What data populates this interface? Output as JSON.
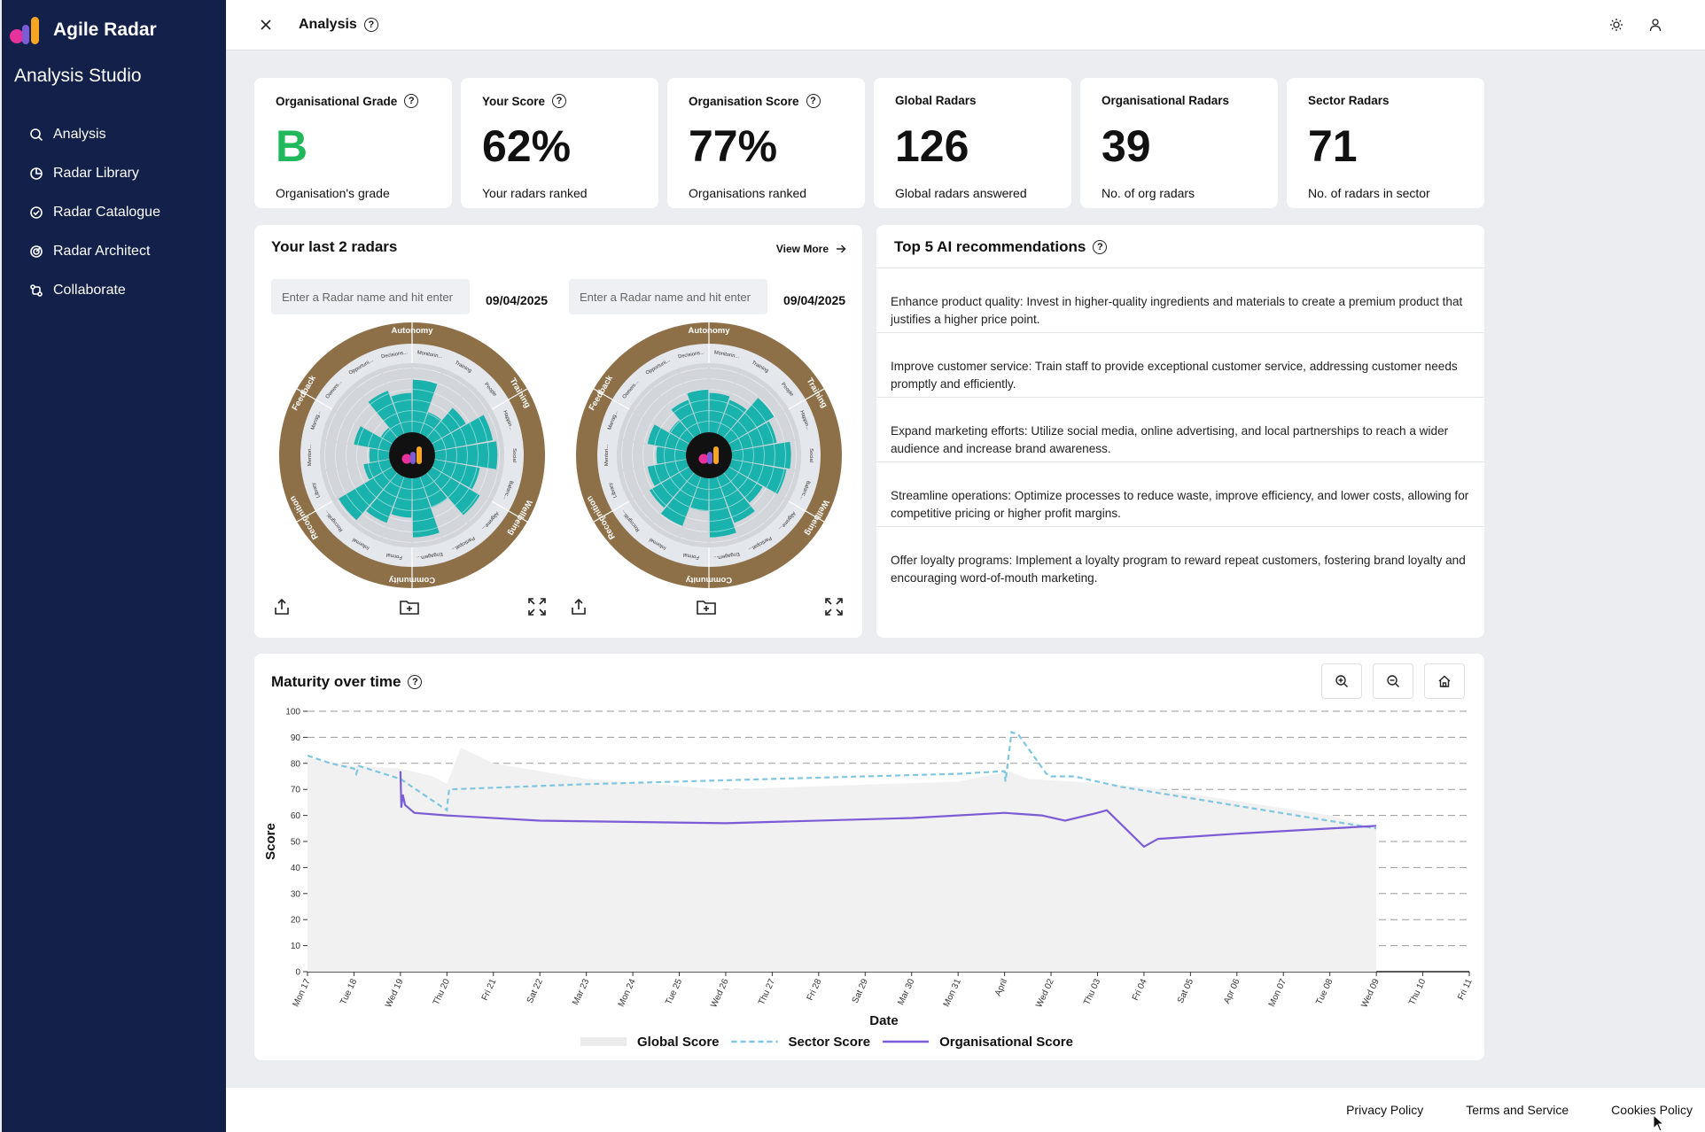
{
  "brand": {
    "name": "Agile Radar",
    "subtitle": "Analysis Studio"
  },
  "sidebar": {
    "items": [
      {
        "label": "Analysis",
        "icon": "search-icon"
      },
      {
        "label": "Radar Library",
        "icon": "pie-icon"
      },
      {
        "label": "Radar Catalogue",
        "icon": "check-circle-icon"
      },
      {
        "label": "Radar Architect",
        "icon": "target-icon"
      },
      {
        "label": "Collaborate",
        "icon": "share-icon"
      }
    ]
  },
  "topbar": {
    "title": "Analysis",
    "close_icon": "close-icon",
    "theme_icon": "sun-icon",
    "user_icon": "user-icon"
  },
  "stats": [
    {
      "label": "Organisational Grade",
      "value": "B",
      "sub": "Organisation's grade",
      "help": true,
      "color": "#1fb85a"
    },
    {
      "label": "Your Score",
      "value": "62%",
      "sub": "Your radars ranked",
      "help": true
    },
    {
      "label": "Organisation Score",
      "value": "77%",
      "sub": "Organisations ranked",
      "help": true
    },
    {
      "label": "Global Radars",
      "value": "126",
      "sub": "Global radars answered",
      "help": false
    },
    {
      "label": "Organisational Radars",
      "value": "39",
      "sub": "No. of org radars",
      "help": false
    },
    {
      "label": "Sector Radars",
      "value": "71",
      "sub": "No. of radars in sector",
      "help": false
    }
  ],
  "radars": {
    "title": "Your last 2 radars",
    "view_more": "View More",
    "items": [
      {
        "placeholder": "Enter a Radar name and hit enter",
        "date": "09/04/2025"
      },
      {
        "placeholder": "Enter a Radar name and hit enter",
        "date": "09/04/2025"
      }
    ],
    "ring_labels": [
      "Autonomy",
      "Training",
      "Wellbeing",
      "Community",
      "Recognition",
      "Feedback"
    ],
    "inner_labels": [
      "Monitorin...",
      "Training",
      "People",
      "Happin...",
      "Social",
      "Balanc...",
      "Alignme...",
      "Participat...",
      "Engagem...",
      "Formal",
      "Informal",
      "Recogniti...",
      "Library",
      "Mentori...",
      "Manag...",
      "Owners...",
      "Opportuni...",
      "Decisions..."
    ]
  },
  "recommendations": {
    "title": "Top 5 AI recommendations",
    "items": [
      "Enhance product quality: Invest in higher-quality ingredients and materials to create a premium product that justifies a higher price point.",
      "Improve customer service: Train staff to provide exceptional customer service, addressing customer needs promptly and efficiently.",
      "Expand marketing efforts: Utilize social media, online advertising, and local partnerships to reach a wider audience and increase brand awareness.",
      "Streamline operations: Optimize processes to reduce waste, improve efficiency, and lower costs, allowing for competitive pricing or higher profit margins.",
      "Offer loyalty programs: Implement a loyalty program to reward repeat customers, fostering brand loyalty and encouraging word-of-mouth marketing."
    ]
  },
  "maturity": {
    "title": "Maturity over time",
    "zoom_in_icon": "zoom-in-icon",
    "zoom_out_icon": "zoom-out-icon",
    "home_icon": "home-icon"
  },
  "chart_data": {
    "type": "line",
    "xlabel": "Date",
    "ylabel": "Score",
    "ylim": [
      0,
      100
    ],
    "yticks": [
      0,
      10,
      20,
      30,
      40,
      50,
      60,
      70,
      80,
      90,
      100
    ],
    "x_tick_labels": [
      "Mon 17",
      "Tue 18",
      "Wed 19",
      "Thu 20",
      "Fri 21",
      "Sat 22",
      "Mar 23",
      "Mon 24",
      "Tue 25",
      "Wed 26",
      "Thu 27",
      "Fri 28",
      "Sat 29",
      "Mar 30",
      "Mon 31",
      "April",
      "Wed 02",
      "Thu 03",
      "Fri 04",
      "Sat 05",
      "Apr 06",
      "Mon 07",
      "Tue 08",
      "Wed 09",
      "Thu 10",
      "Fri 11"
    ],
    "grid": true,
    "legend_position": "bottom",
    "series": [
      {
        "name": "Global Score",
        "style": "area",
        "color": "#f1f1f1",
        "x": [
          0,
          1,
          2,
          2.7,
          3,
          3.3,
          4,
          6,
          9,
          14,
          15.1,
          15.5,
          16.5,
          18,
          22,
          23
        ],
        "values": [
          82,
          79,
          78,
          75,
          72,
          86,
          80,
          74,
          70,
          73,
          77,
          74,
          73,
          71,
          60,
          55
        ]
      },
      {
        "name": "Sector Score",
        "style": "dashed",
        "color": "#7fc6e0",
        "x": [
          0,
          0.5,
          1.0,
          1.05,
          1.1,
          2,
          3.0,
          3.02,
          3.05,
          6,
          10,
          14,
          15.0,
          15.02,
          15.15,
          15.3,
          15.9,
          16.0,
          16.5,
          17.5,
          23
        ],
        "values": [
          83,
          80,
          78,
          76,
          79,
          74,
          62,
          66,
          70,
          72,
          74,
          76,
          77,
          73,
          92,
          91,
          76,
          75,
          75,
          71,
          55
        ]
      },
      {
        "name": "Organisational Score",
        "style": "solid",
        "color": "#7b5bd6",
        "x": [
          0,
          2.0,
          2.02,
          2.05,
          2.1,
          2.3,
          3,
          5,
          9,
          13,
          15,
          15.8,
          16.3,
          17,
          17.2,
          18.0,
          18.3,
          20,
          23
        ],
        "values": [
          null,
          77,
          63,
          68,
          64,
          61,
          60,
          58,
          57,
          59,
          61,
          60,
          58,
          61,
          62,
          48,
          51,
          53,
          56
        ]
      }
    ]
  },
  "footer": {
    "privacy": "Privacy Policy",
    "terms": "Terms and Service",
    "cookies": "Cookies Policy"
  }
}
